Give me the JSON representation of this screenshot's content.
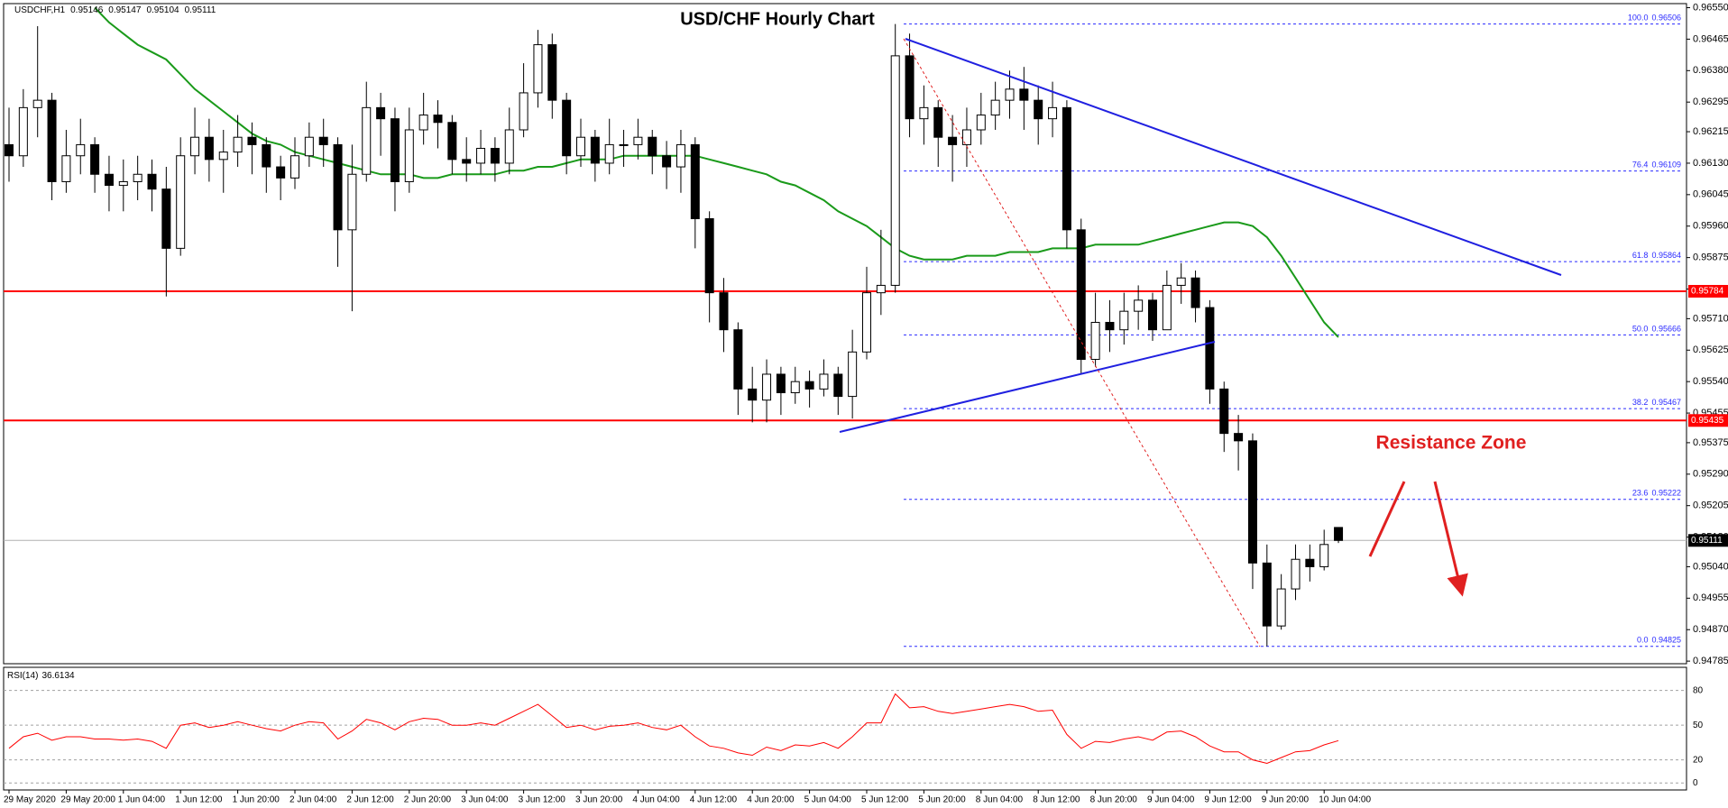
{
  "chart_data": {
    "type": "candlestick",
    "title": "USD/CHF Hourly Chart",
    "symbol": "USDCHF,H1",
    "annotation": "Resistance Zone",
    "categories": [
      "29 May 2020",
      null,
      null,
      null,
      "29 May 20:00",
      null,
      null,
      null,
      "1 Jun 04:00",
      null,
      null,
      null,
      "1 Jun 12:00",
      null,
      null,
      null,
      "1 Jun 20:00",
      null,
      null,
      null,
      "2 Jun 04:00",
      null,
      null,
      null,
      "2 Jun 12:00",
      null,
      null,
      null,
      "2 Jun 20:00",
      null,
      null,
      null,
      "3 Jun 04:00",
      null,
      null,
      null,
      "3 Jun 12:00",
      null,
      null,
      null,
      "3 Jun 20:00",
      null,
      null,
      null,
      "4 Jun 04:00",
      null,
      null,
      null,
      "4 Jun 12:00",
      null,
      null,
      null,
      "4 Jun 20:00",
      null,
      null,
      null,
      "5 Jun 04:00",
      null,
      null,
      null,
      "5 Jun 12:00",
      null,
      null,
      null,
      "5 Jun 20:00",
      null,
      null,
      null,
      "8 Jun 04:00",
      null,
      null,
      null,
      "8 Jun 12:00",
      null,
      null,
      null,
      "8 Jun 20:00",
      null,
      null,
      null,
      "9 Jun 04:00",
      null,
      null,
      null,
      "9 Jun 12:00",
      null,
      null,
      null,
      "9 Jun 20:00",
      null,
      null,
      null,
      "10 Jun 04:00",
      null
    ],
    "open": [
      0.9618,
      0.9615,
      0.9628,
      0.963,
      0.9608,
      0.9615,
      0.9618,
      0.961,
      0.9607,
      0.9608,
      0.961,
      0.9606,
      0.959,
      0.9615,
      0.962,
      0.9614,
      0.9616,
      0.962,
      0.9618,
      0.9612,
      0.9609,
      0.9615,
      0.962,
      0.9618,
      0.9595,
      0.961,
      0.9628,
      0.9625,
      0.9608,
      0.9622,
      0.9626,
      0.9624,
      0.9614,
      0.9613,
      0.9617,
      0.9613,
      0.9622,
      0.9632,
      0.9645,
      0.963,
      0.9615,
      0.962,
      0.9613,
      0.9618,
      0.9618,
      0.962,
      0.9615,
      0.9612,
      0.9618,
      0.9598,
      0.9578,
      0.9568,
      0.9552,
      0.9549,
      0.9556,
      0.9551,
      0.9554,
      0.9552,
      0.9556,
      0.955,
      0.9562,
      0.9578,
      0.958,
      0.9642,
      0.9625,
      0.9628,
      0.962,
      0.9618,
      0.9622,
      0.9626,
      0.963,
      0.9633,
      0.963,
      0.9625,
      0.9628,
      0.9595,
      0.956,
      0.957,
      0.9568,
      0.9573,
      0.9576,
      0.9568,
      0.958,
      0.9582,
      0.9574,
      0.9552,
      0.954,
      0.9538,
      0.9505,
      0.9488,
      0.9498,
      0.9506,
      0.9504,
      0.95146
    ],
    "high": [
      0.9628,
      0.9633,
      0.965,
      0.9632,
      0.9622,
      0.9625,
      0.962,
      0.9615,
      0.9614,
      0.9615,
      0.9614,
      0.9612,
      0.962,
      0.9628,
      0.9625,
      0.9622,
      0.9626,
      0.9624,
      0.962,
      0.9615,
      0.962,
      0.9624,
      0.9625,
      0.962,
      0.9618,
      0.9635,
      0.9632,
      0.9628,
      0.9628,
      0.9632,
      0.963,
      0.9626,
      0.962,
      0.9622,
      0.962,
      0.9628,
      0.964,
      0.9649,
      0.9648,
      0.9632,
      0.9625,
      0.9622,
      0.9625,
      0.9622,
      0.9625,
      0.9622,
      0.9619,
      0.9622,
      0.962,
      0.96,
      0.9582,
      0.957,
      0.9558,
      0.956,
      0.9558,
      0.9558,
      0.9557,
      0.956,
      0.9558,
      0.9568,
      0.9585,
      0.9595,
      0.96506,
      0.9648,
      0.9634,
      0.963,
      0.9626,
      0.9628,
      0.9632,
      0.9635,
      0.9638,
      0.9639,
      0.9634,
      0.9635,
      0.963,
      0.9598,
      0.9578,
      0.9576,
      0.9578,
      0.958,
      0.9578,
      0.9584,
      0.9586,
      0.9584,
      0.9576,
      0.9554,
      0.9545,
      0.954,
      0.951,
      0.9502,
      0.951,
      0.951,
      0.9514,
      0.95147
    ],
    "low": [
      0.9608,
      0.9612,
      0.962,
      0.9603,
      0.9605,
      0.961,
      0.9605,
      0.96,
      0.96,
      0.9603,
      0.96,
      0.9577,
      0.9588,
      0.961,
      0.9608,
      0.9605,
      0.9612,
      0.961,
      0.9605,
      0.9603,
      0.9606,
      0.9612,
      0.9612,
      0.9585,
      0.9573,
      0.9608,
      0.9615,
      0.96,
      0.9605,
      0.9618,
      0.9617,
      0.961,
      0.9608,
      0.961,
      0.9608,
      0.961,
      0.962,
      0.9628,
      0.9625,
      0.961,
      0.9612,
      0.9608,
      0.961,
      0.9612,
      0.9614,
      0.961,
      0.9606,
      0.9605,
      0.959,
      0.957,
      0.9562,
      0.9545,
      0.9543,
      0.9543,
      0.9545,
      0.9548,
      0.9547,
      0.955,
      0.9545,
      0.9544,
      0.956,
      0.9572,
      0.9578,
      0.962,
      0.9618,
      0.9612,
      0.9608,
      0.9612,
      0.9618,
      0.9622,
      0.9625,
      0.9622,
      0.9618,
      0.962,
      0.959,
      0.9556,
      0.9558,
      0.9562,
      0.9564,
      0.9568,
      0.9565,
      0.9568,
      0.9575,
      0.957,
      0.9548,
      0.9535,
      0.953,
      0.9498,
      0.94825,
      0.9487,
      0.9495,
      0.95,
      0.9503,
      0.95104
    ],
    "close": [
      0.9615,
      0.9628,
      0.963,
      0.9608,
      0.9615,
      0.9618,
      0.961,
      0.9607,
      0.9608,
      0.961,
      0.9606,
      0.959,
      0.9615,
      0.962,
      0.9614,
      0.9616,
      0.962,
      0.9618,
      0.9612,
      0.9609,
      0.9615,
      0.962,
      0.9618,
      0.9595,
      0.961,
      0.9628,
      0.9625,
      0.9608,
      0.9622,
      0.9626,
      0.9624,
      0.9614,
      0.9613,
      0.9617,
      0.9613,
      0.9622,
      0.9632,
      0.9645,
      0.963,
      0.9615,
      0.962,
      0.9613,
      0.9618,
      0.9618,
      0.962,
      0.9615,
      0.9612,
      0.9618,
      0.9598,
      0.9578,
      0.9568,
      0.9552,
      0.9549,
      0.9556,
      0.9551,
      0.9554,
      0.9552,
      0.9556,
      0.955,
      0.9562,
      0.9578,
      0.958,
      0.9642,
      0.9625,
      0.9628,
      0.962,
      0.9618,
      0.9622,
      0.9626,
      0.963,
      0.9633,
      0.963,
      0.9625,
      0.9628,
      0.9595,
      0.956,
      0.957,
      0.9568,
      0.9573,
      0.9576,
      0.9568,
      0.958,
      0.9582,
      0.9574,
      0.9552,
      0.954,
      0.9538,
      0.9505,
      0.9488,
      0.9498,
      0.9506,
      0.9504,
      0.951,
      0.95111
    ],
    "up_color": "#ffffff",
    "down_color": "#000000",
    "ylim": [
      0.94778,
      0.96561
    ],
    "yticks": [
      {
        "value": 0.9655,
        "label": "0.96550"
      },
      0.96465,
      {
        "value": 0.9638,
        "label": "0.96380"
      },
      0.96295,
      0.96215,
      {
        "value": 0.9613,
        "label": "0.96130"
      },
      0.96045,
      {
        "value": 0.9596,
        "label": "0.95960"
      },
      0.95875,
      {
        "value": 0.9579,
        "label": "0.95790"
      },
      {
        "value": 0.9571,
        "label": "0.95710"
      },
      0.95625,
      {
        "value": 0.9554,
        "label": "0.95540"
      },
      0.95455,
      0.95375,
      {
        "value": 0.9529,
        "label": "0.95290"
      },
      0.95205,
      {
        "value": 0.9512,
        "label": "0.95120"
      },
      {
        "value": 0.9504,
        "label": "0.95040"
      },
      0.94955,
      {
        "value": 0.9487,
        "label": "0.94870"
      },
      0.94785
    ],
    "ma": {
      "color": "#1a9a1a",
      "values": [
        null,
        null,
        null,
        null,
        null,
        null,
        0.9655,
        0.9651,
        0.9648,
        0.9645,
        0.9643,
        0.9641,
        0.9637,
        0.9633,
        0.963,
        0.9627,
        0.9624,
        0.9621,
        0.9619,
        0.9618,
        0.9616,
        0.9615,
        0.9614,
        0.9613,
        0.9612,
        0.9611,
        0.961,
        0.961,
        0.961,
        0.9609,
        0.9609,
        0.961,
        0.961,
        0.961,
        0.961,
        0.9611,
        0.9611,
        0.9612,
        0.9612,
        0.9613,
        0.9614,
        0.9614,
        0.9614,
        0.9615,
        0.9615,
        0.9615,
        0.9615,
        0.9615,
        0.9615,
        0.9614,
        0.9613,
        0.9612,
        0.9611,
        0.961,
        0.9608,
        0.9607,
        0.9605,
        0.9603,
        0.96,
        0.9598,
        0.9596,
        0.9593,
        0.959,
        0.9588,
        0.9587,
        0.9587,
        0.9587,
        0.9588,
        0.9588,
        0.9588,
        0.9589,
        0.9589,
        0.9589,
        0.959,
        0.959,
        0.959,
        0.9591,
        0.9591,
        0.9591,
        0.9591,
        0.9592,
        0.9593,
        0.9594,
        0.9595,
        0.9596,
        0.9597,
        0.9597,
        0.9596,
        0.9593,
        0.9588,
        0.9582,
        0.9576,
        0.957,
        0.9566
      ]
    },
    "fib": {
      "color": "#2a2aff",
      "levels": [
        {
          "value": 100,
          "label": "100.0"
        },
        76.4,
        61.8,
        {
          "value": 50,
          "label": "50.0"
        },
        38.2,
        23.6,
        {
          "value": 0,
          "label": "0.0"
        }
      ],
      "prices": [
        0.96506,
        0.96109,
        0.95864,
        0.95666,
        0.95467,
        0.95222,
        0.94825
      ]
    },
    "levels": {
      "color": "#ff0000",
      "values": [
        0.95784,
        0.95435
      ]
    },
    "rsi": {
      "title": "RSI(14)",
      "color": "#ff0000",
      "ylim": [
        -6,
        100
      ],
      "yticks": [
        80,
        50,
        20,
        0
      ],
      "values": [
        30,
        40,
        43,
        37,
        40,
        40,
        38,
        38,
        37,
        38,
        36,
        30,
        50,
        52,
        48,
        50,
        53,
        50,
        47,
        45,
        50,
        53,
        52,
        38,
        45,
        55,
        52,
        46,
        53,
        56,
        55,
        50,
        50,
        52,
        50,
        56,
        62,
        68,
        58,
        48,
        50,
        46,
        49,
        50,
        52,
        48,
        46,
        50,
        40,
        32,
        30,
        26,
        24,
        31,
        28,
        33,
        32,
        35,
        30,
        40,
        52,
        52,
        77,
        65,
        66,
        62,
        60,
        62,
        64,
        66,
        68,
        66,
        62,
        63,
        42,
        30,
        36,
        35,
        38,
        40,
        37,
        44,
        45,
        40,
        32,
        27,
        27,
        20,
        17,
        22,
        27,
        28,
        33,
        36.6134
      ]
    }
  }
}
